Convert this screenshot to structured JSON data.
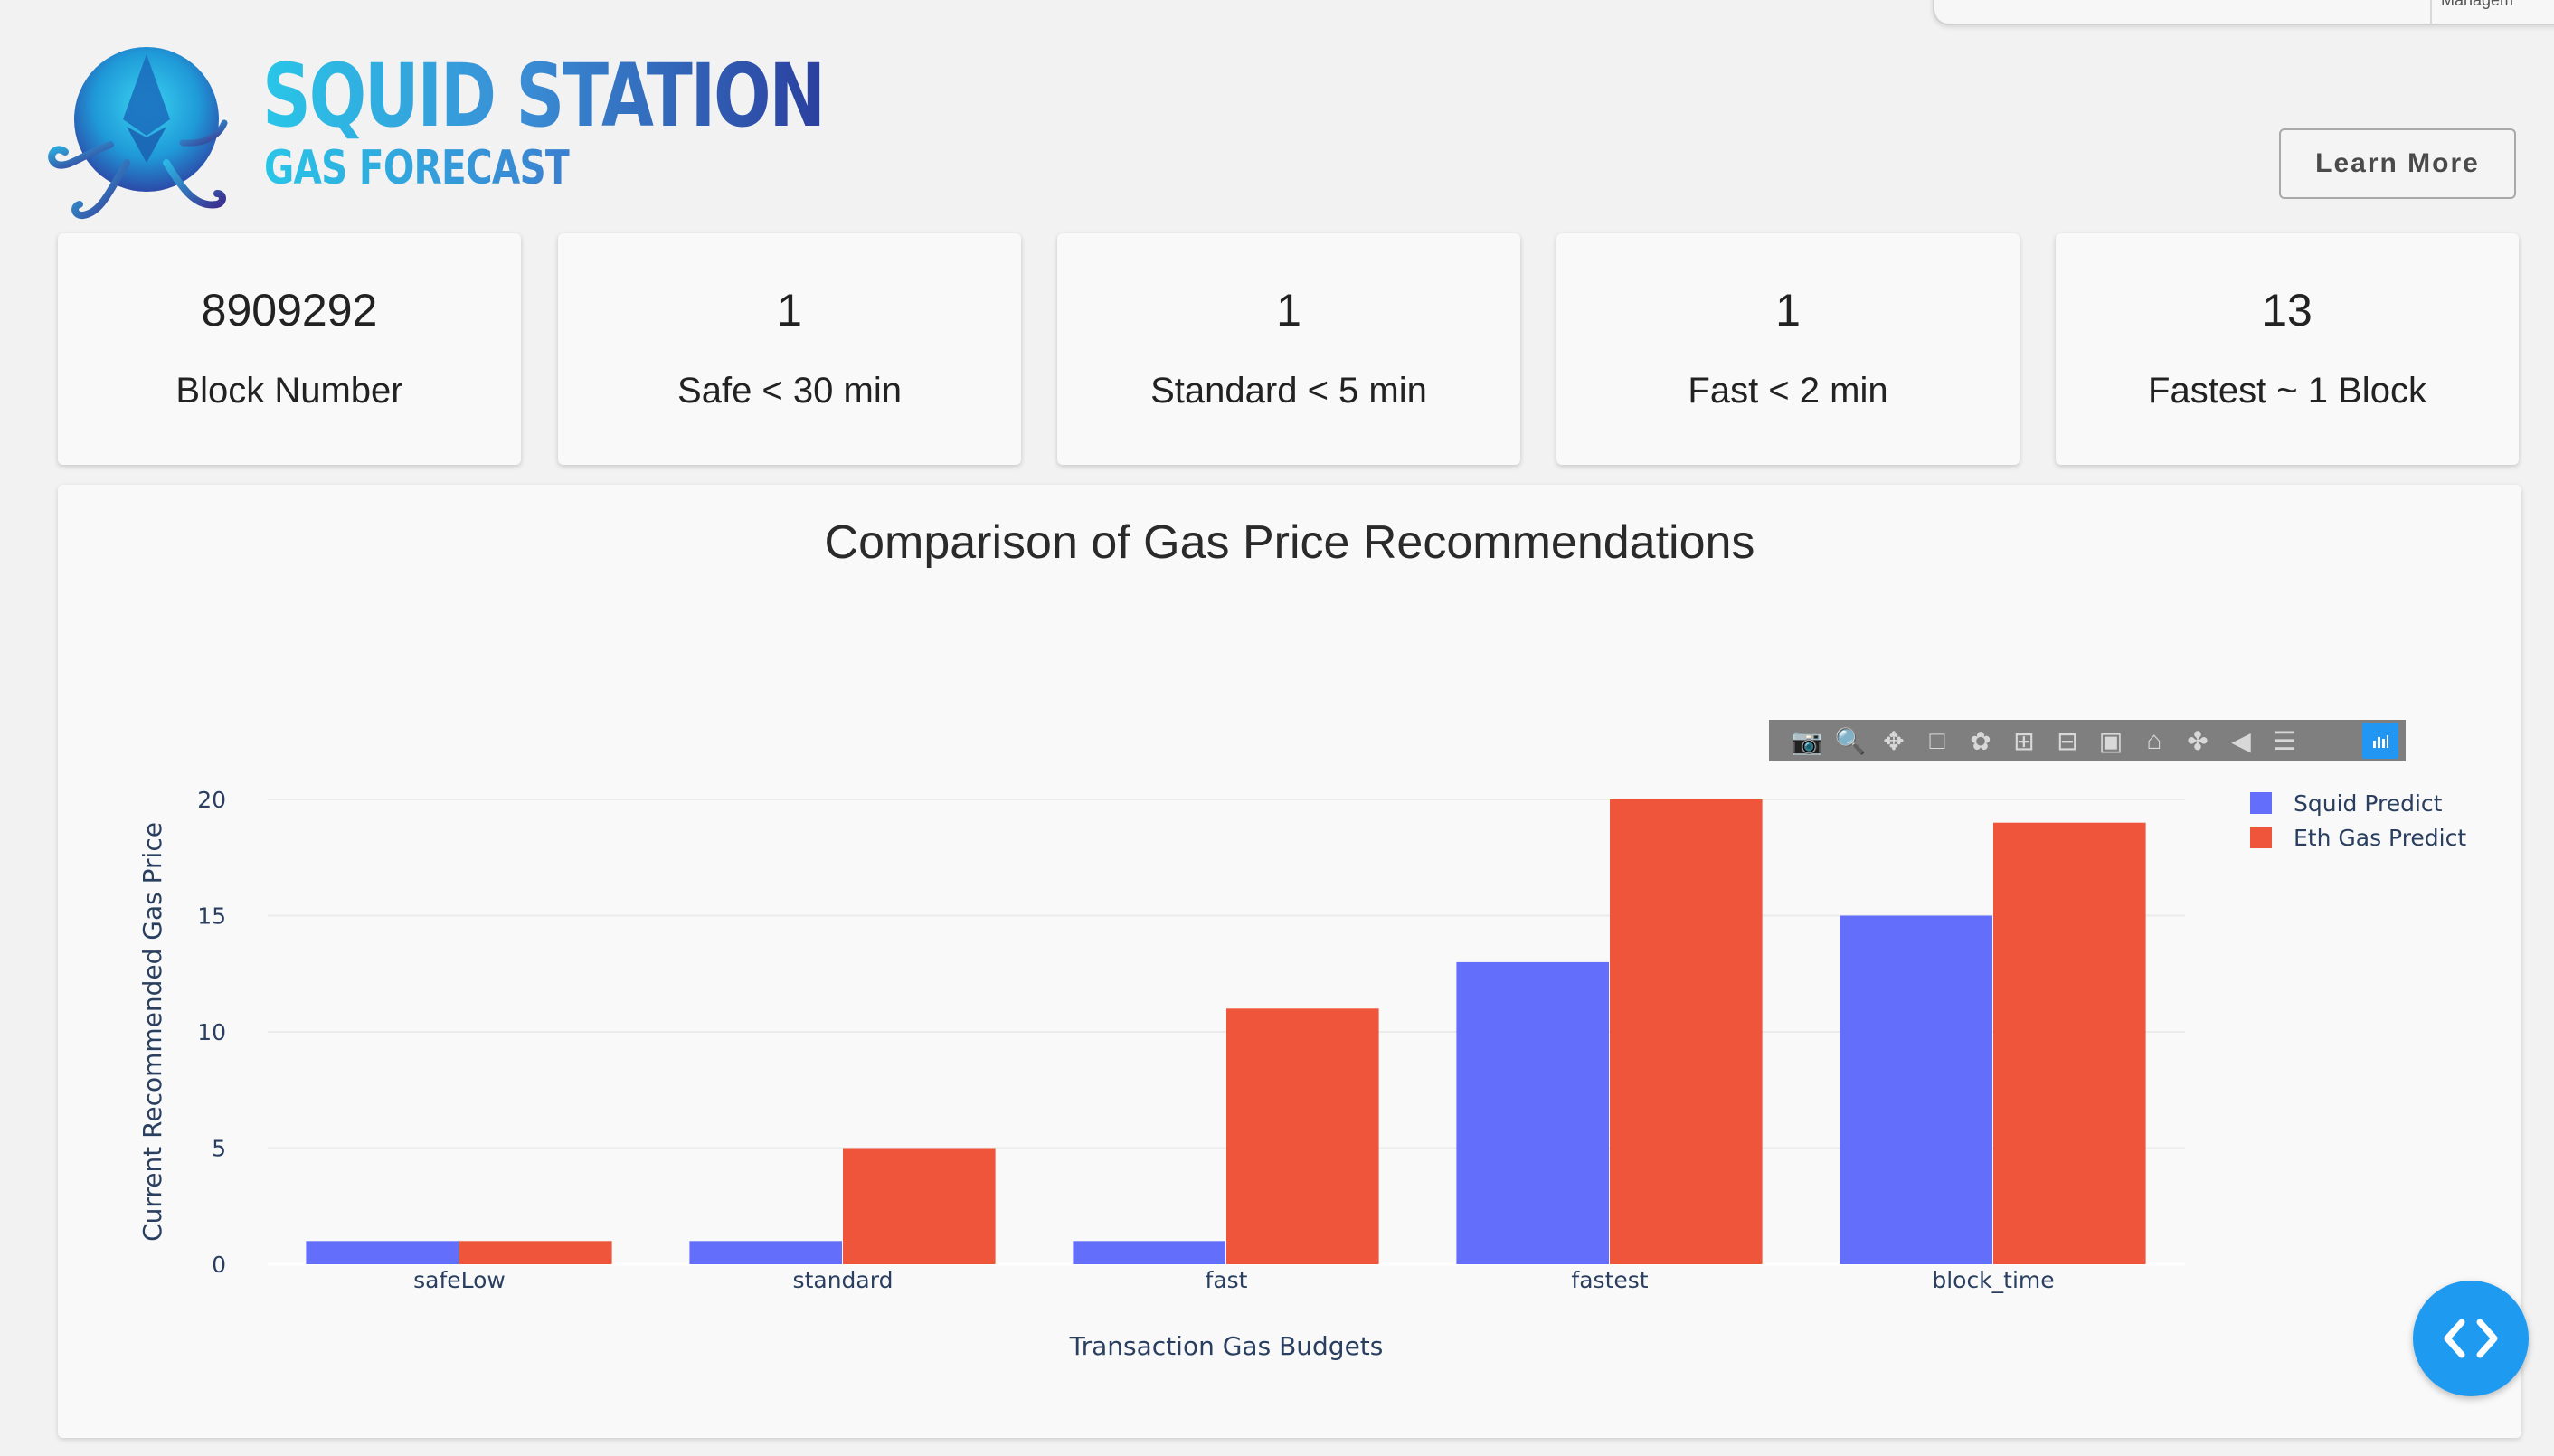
{
  "overlay": {
    "text": "Managem"
  },
  "brand": {
    "title": "SQUID STATION",
    "subtitle": "GAS FORECAST"
  },
  "header": {
    "learn_more_label": "Learn More"
  },
  "stats": [
    {
      "value": "8909292",
      "label": "Block Number"
    },
    {
      "value": "1",
      "label": "Safe < 30 min"
    },
    {
      "value": "1",
      "label": "Standard < 5 min"
    },
    {
      "value": "1",
      "label": "Fast < 2 min"
    },
    {
      "value": "13",
      "label": "Fastest ~ 1 Block"
    }
  ],
  "modebar": {
    "icons": [
      "camera-icon",
      "zoom-icon",
      "pan-icon",
      "box-select-icon",
      "lasso-select-icon",
      "zoom-in-icon",
      "zoom-out-icon",
      "autoscale-icon",
      "home-icon",
      "spike-lines-icon",
      "hover-closest-icon",
      "hover-compare-icon",
      "plotly-logo-icon"
    ]
  },
  "chart_data": {
    "type": "bar",
    "title": "Comparison of Gas Price Recommendations",
    "xlabel": "Transaction Gas Budgets",
    "ylabel": "Current Recommended Gas Price",
    "categories": [
      "safeLow",
      "standard",
      "fast",
      "fastest",
      "block_time"
    ],
    "series": [
      {
        "name": "Squid Predict",
        "color": "#636efa",
        "values": [
          1,
          1,
          1,
          13,
          15
        ]
      },
      {
        "name": "Eth Gas Predict",
        "color": "#ef553b",
        "values": [
          1,
          5,
          11,
          20,
          19
        ]
      }
    ],
    "ylim": [
      0,
      20
    ],
    "yticks": [
      0,
      5,
      10,
      15,
      20
    ],
    "grid": true,
    "legend_position": "top-right"
  }
}
